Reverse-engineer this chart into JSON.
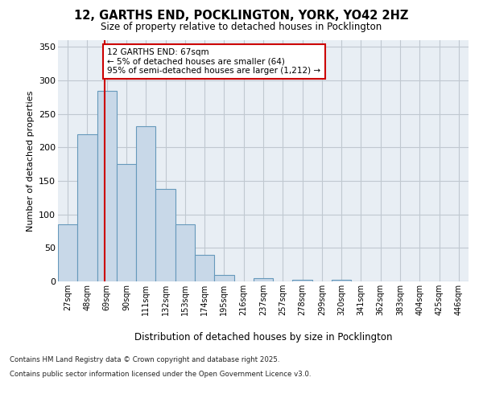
{
  "title_line1": "12, GARTHS END, POCKLINGTON, YORK, YO42 2HZ",
  "title_line2": "Size of property relative to detached houses in Pocklington",
  "xlabel": "Distribution of detached houses by size in Pocklington",
  "ylabel": "Number of detached properties",
  "categories": [
    "27sqm",
    "48sqm",
    "69sqm",
    "90sqm",
    "111sqm",
    "132sqm",
    "153sqm",
    "174sqm",
    "195sqm",
    "216sqm",
    "237sqm",
    "257sqm",
    "278sqm",
    "299sqm",
    "320sqm",
    "341sqm",
    "362sqm",
    "383sqm",
    "404sqm",
    "425sqm",
    "446sqm"
  ],
  "values": [
    85,
    220,
    285,
    175,
    232,
    138,
    85,
    40,
    10,
    0,
    5,
    0,
    2,
    0,
    2,
    0,
    0,
    0,
    0,
    0,
    0
  ],
  "bar_color": "#c8d8e8",
  "bar_edge_color": "#6699bb",
  "grid_color": "#c0c8d0",
  "background_color": "#e8eef4",
  "annotation_text": "12 GARTHS END: 67sqm\n← 5% of detached houses are smaller (64)\n95% of semi-detached houses are larger (1,212) →",
  "annotation_box_color": "#ffffff",
  "annotation_line_color": "#cc0000",
  "ylim": [
    0,
    360
  ],
  "yticks": [
    0,
    50,
    100,
    150,
    200,
    250,
    300,
    350
  ],
  "footer_line1": "Contains HM Land Registry data © Crown copyright and database right 2025.",
  "footer_line2": "Contains public sector information licensed under the Open Government Licence v3.0."
}
